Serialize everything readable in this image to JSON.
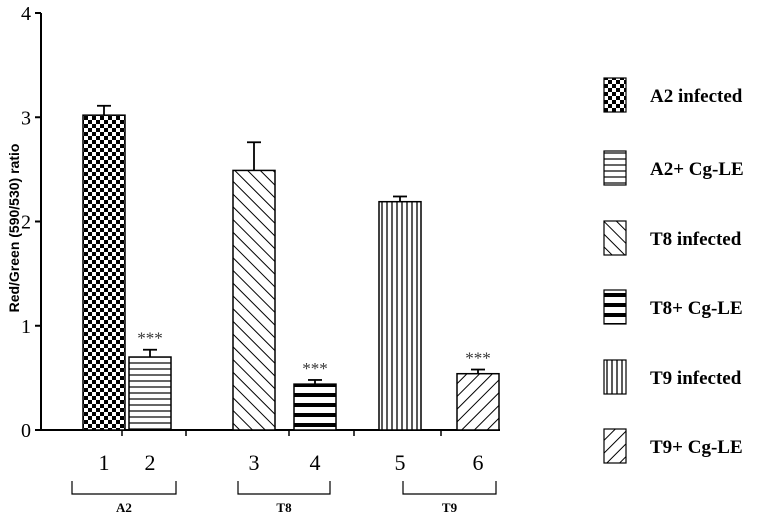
{
  "chart_data": {
    "type": "bar",
    "ylabel": "Red/Green (590/530) ratio",
    "ylim": [
      0,
      4
    ],
    "yticks": [
      "0",
      "1",
      "2",
      "3",
      "4"
    ],
    "categories": [
      "1",
      "2",
      "3",
      "4",
      "5",
      "6"
    ],
    "series": [
      {
        "name": "A2 infected",
        "values": [
          3.02,
          null,
          null,
          null,
          null,
          null
        ],
        "error": 0.09,
        "pattern": "checker"
      },
      {
        "name": "A2+ Cg-LE",
        "values": [
          null,
          0.7,
          null,
          null,
          null,
          null
        ],
        "error": 0.07,
        "pattern": "hstripes",
        "annotation": "***"
      },
      {
        "name": "T8 infected",
        "values": [
          null,
          null,
          2.49,
          null,
          null,
          null
        ],
        "error": 0.27,
        "pattern": "diag-fwd"
      },
      {
        "name": "T8+ Cg-LE",
        "values": [
          null,
          null,
          null,
          0.44,
          null,
          null
        ],
        "error": 0.04,
        "pattern": "hstripes-thick",
        "annotation": "***"
      },
      {
        "name": "T9 infected",
        "values": [
          null,
          null,
          null,
          null,
          2.19,
          null
        ],
        "error": 0.05,
        "pattern": "vstripes"
      },
      {
        "name": "T9+ Cg-LE",
        "values": [
          null,
          null,
          null,
          null,
          null,
          0.54
        ],
        "error": 0.04,
        "pattern": "diag-back",
        "annotation": "***"
      }
    ],
    "groups": [
      {
        "label": "A2",
        "bars": [
          0,
          1
        ]
      },
      {
        "label": "T8",
        "bars": [
          2,
          3
        ]
      },
      {
        "label": "T9",
        "bars": [
          4,
          5
        ]
      }
    ],
    "grid": false,
    "legend_position": "right"
  }
}
